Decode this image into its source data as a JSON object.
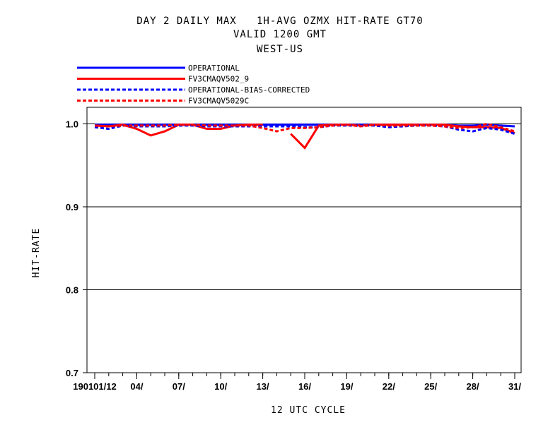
{
  "chart_data": {
    "type": "line",
    "title": [
      "DAY 2 DAILY MAX   1H-AVG OZMX HIT-RATE GT70",
      "VALID 1200 GMT",
      "WEST-US"
    ],
    "xlabel": "12 UTC CYCLE",
    "ylabel": "HIT-RATE",
    "xlim": [
      1,
      31
    ],
    "ylim": [
      0.7,
      1.02
    ],
    "yticks": [
      0.7,
      0.8,
      0.9,
      1.0
    ],
    "ytick_labels": [
      "0.7",
      "0.8",
      "0.9",
      "1.0"
    ],
    "xticks": [
      1,
      4,
      7,
      10,
      13,
      16,
      19,
      22,
      25,
      28,
      31
    ],
    "xtick_labels": [
      "190101/12",
      "04/",
      "07/",
      "10/",
      "13/",
      "16/",
      "19/",
      "22/",
      "25/",
      "28/",
      "31/"
    ],
    "gridlines_y": [
      0.8,
      0.9,
      1.0
    ],
    "legend_position": "top-left above plot",
    "series": [
      {
        "name": "OPERATIONAL",
        "color": "#0000ff",
        "dash": "solid",
        "x": [
          1,
          2,
          3,
          4,
          5,
          6,
          7,
          8,
          9,
          10,
          11,
          12,
          13,
          14,
          15,
          16,
          17,
          18,
          19,
          20,
          21,
          22,
          23,
          24,
          25,
          26,
          27,
          28,
          29,
          30,
          31
        ],
        "y": [
          0.999,
          0.999,
          0.999,
          0.999,
          0.999,
          0.999,
          0.999,
          0.999,
          0.999,
          0.999,
          0.999,
          0.999,
          0.999,
          0.999,
          0.999,
          0.999,
          0.999,
          0.999,
          0.999,
          0.999,
          0.999,
          0.999,
          0.999,
          0.999,
          0.999,
          0.999,
          0.998,
          0.998,
          0.999,
          0.998,
          0.997
        ]
      },
      {
        "name": "FV3CMAQV502_9",
        "color": "#ff0000",
        "dash": "solid",
        "x": [
          1,
          2,
          3,
          4,
          5,
          6,
          7,
          8,
          9,
          10,
          11,
          12,
          13,
          14,
          15,
          16,
          17,
          18,
          19,
          20,
          21,
          22,
          23,
          24,
          25,
          26,
          27,
          28,
          29,
          30,
          31
        ],
        "y": [
          0.998,
          0.997,
          0.999,
          0.994,
          0.986,
          0.991,
          0.999,
          0.999,
          0.994,
          0.994,
          0.998,
          0.999,
          0.999,
          null,
          0.988,
          0.971,
          0.998,
          0.999,
          0.999,
          0.998,
          0.999,
          0.999,
          0.999,
          0.999,
          0.999,
          0.999,
          0.997,
          0.996,
          0.996,
          0.995,
          0.989
        ]
      },
      {
        "name": "OPERATIONAL-BIAS-CORRECTED",
        "color": "#0000ff",
        "dash": "dashed",
        "x": [
          1,
          2,
          3,
          4,
          5,
          6,
          7,
          8,
          9,
          10,
          11,
          12,
          13,
          14,
          15,
          16,
          17,
          18,
          19,
          20,
          21,
          22,
          23,
          24,
          25,
          26,
          27,
          28,
          29,
          30,
          31
        ],
        "y": [
          0.996,
          0.994,
          0.998,
          0.997,
          0.997,
          0.997,
          0.998,
          0.998,
          0.997,
          0.997,
          0.997,
          0.997,
          0.997,
          0.997,
          0.997,
          0.996,
          0.996,
          0.998,
          0.998,
          0.998,
          0.998,
          0.996,
          0.997,
          0.998,
          0.998,
          0.997,
          0.993,
          0.991,
          0.995,
          0.993,
          0.988
        ]
      },
      {
        "name": "FV3CMAQV5029C",
        "color": "#ff0000",
        "dash": "dashed",
        "x": [
          1,
          2,
          3,
          4,
          5,
          6,
          7,
          8,
          9,
          10,
          11,
          12,
          13,
          14,
          15,
          16,
          17,
          18,
          19,
          20,
          21,
          22,
          23,
          24,
          25,
          26,
          27,
          28,
          29,
          30,
          31
        ],
        "y": [
          0.998,
          0.997,
          0.998,
          0.998,
          0.998,
          0.998,
          0.999,
          0.999,
          0.998,
          0.998,
          0.998,
          0.998,
          0.995,
          0.991,
          0.995,
          0.995,
          0.996,
          0.998,
          0.999,
          0.997,
          0.999,
          0.998,
          0.998,
          0.998,
          0.998,
          0.997,
          0.995,
          0.996,
          1.0,
          0.996,
          0.991
        ]
      }
    ]
  }
}
